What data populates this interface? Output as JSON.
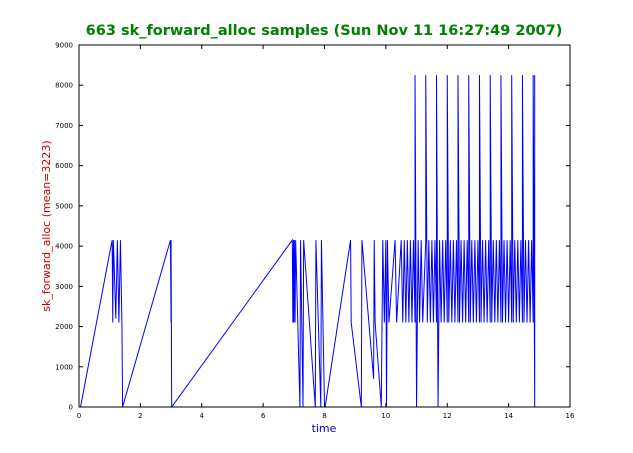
{
  "chart_data": {
    "type": "line",
    "title": "663 sk_forward_alloc samples (Sun Nov 11 16:27:49 2007)",
    "xlabel": "time",
    "ylabel": "sk_forward_alloc (mean=3223)",
    "xlim": [
      0,
      16
    ],
    "ylim": [
      0,
      9000
    ],
    "x_ticks": [
      0,
      2,
      4,
      6,
      8,
      10,
      12,
      14,
      16
    ],
    "y_ticks": [
      0,
      1000,
      2000,
      3000,
      4000,
      5000,
      6000,
      7000,
      8000,
      9000
    ],
    "grid": false,
    "colors": {
      "title": "#008000",
      "ylabel": "#cc0000",
      "xlabel": "#0000cc",
      "series": "#0000ff"
    },
    "series": [
      {
        "x": [
          0.0,
          0.0,
          0.02,
          0.05,
          1.08,
          1.1,
          1.12,
          1.2,
          1.25,
          1.3,
          1.35,
          1.4,
          1.42,
          2.98,
          3.0,
          3.0,
          3.02,
          6.95,
          6.97,
          6.99,
          7.0,
          7.02,
          7.04,
          7.06,
          7.2,
          7.22,
          7.3,
          7.32,
          7.7,
          7.72,
          7.88,
          7.9,
          8.0,
          8.02,
          8.85,
          8.87,
          9.2,
          9.22,
          9.6,
          9.62,
          9.65,
          9.85,
          9.9,
          9.95,
          10.0,
          10.02,
          10.05,
          10.1,
          10.3,
          10.35,
          10.5,
          10.55,
          10.6,
          10.65,
          10.7,
          10.75,
          10.8,
          10.85,
          10.9,
          10.95,
          10.95,
          11.0,
          11.05,
          11.1,
          11.15,
          11.2,
          11.3,
          11.3,
          11.35,
          11.4,
          11.45,
          11.5,
          11.55,
          11.6,
          11.65,
          11.65,
          11.7,
          11.75,
          11.8,
          11.85,
          11.9,
          11.95,
          12.0,
          12.0,
          12.05,
          12.1,
          12.15,
          12.2,
          12.25,
          12.3,
          12.35,
          12.35,
          12.4,
          12.45,
          12.5,
          12.55,
          12.6,
          12.65,
          12.7,
          12.7,
          12.75,
          12.8,
          12.85,
          12.9,
          12.95,
          13.0,
          13.05,
          13.05,
          13.1,
          13.15,
          13.2,
          13.25,
          13.3,
          13.35,
          13.4,
          13.4,
          13.45,
          13.5,
          13.55,
          13.6,
          13.65,
          13.7,
          13.75,
          13.75,
          13.8,
          13.85,
          13.9,
          13.95,
          14.0,
          14.05,
          14.1,
          14.1,
          14.15,
          14.2,
          14.25,
          14.3,
          14.35,
          14.4,
          14.45,
          14.45,
          14.5,
          14.55,
          14.6,
          14.65,
          14.7,
          14.75,
          14.8,
          14.8,
          14.85,
          14.85
        ],
        "y": [
          4200,
          0,
          0,
          0,
          4150,
          2100,
          4150,
          2200,
          4150,
          2100,
          4150,
          2000,
          0,
          4150,
          2100,
          4150,
          0,
          4150,
          2100,
          4150,
          2100,
          4150,
          2100,
          4150,
          0,
          4150,
          0,
          4150,
          0,
          4150,
          0,
          4150,
          0,
          0,
          4150,
          2100,
          0,
          4150,
          700,
          4150,
          2100,
          0,
          4150,
          2100,
          4150,
          0,
          4150,
          2100,
          4150,
          2100,
          4150,
          2100,
          4150,
          2100,
          4150,
          2100,
          4150,
          2100,
          4150,
          2100,
          8250,
          0,
          4150,
          2100,
          4150,
          2100,
          4150,
          8250,
          2100,
          4150,
          2100,
          4150,
          2100,
          4150,
          2100,
          8250,
          0,
          4150,
          2100,
          4150,
          2100,
          4150,
          2100,
          8250,
          2100,
          4150,
          2100,
          4150,
          2100,
          4150,
          2100,
          8250,
          2100,
          4150,
          2100,
          4150,
          2100,
          4150,
          2100,
          8250,
          2100,
          4150,
          2100,
          4150,
          2100,
          4150,
          2100,
          8250,
          2100,
          4150,
          2100,
          4150,
          2100,
          4150,
          2100,
          8250,
          2100,
          4150,
          2100,
          4150,
          2100,
          4150,
          2100,
          8250,
          2100,
          4150,
          2100,
          4150,
          2100,
          4150,
          2100,
          8250,
          2100,
          4150,
          2100,
          4150,
          2100,
          4150,
          2100,
          8250,
          2100,
          4150,
          2100,
          4150,
          2100,
          4150,
          2100,
          8250,
          0,
          8250
        ]
      }
    ]
  }
}
